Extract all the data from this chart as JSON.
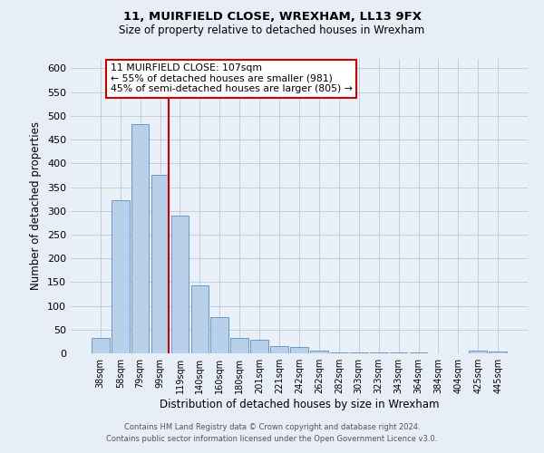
{
  "title1": "11, MUIRFIELD CLOSE, WREXHAM, LL13 9FX",
  "title2": "Size of property relative to detached houses in Wrexham",
  "xlabel": "Distribution of detached houses by size in Wrexham",
  "ylabel": "Number of detached properties",
  "bar_labels": [
    "38sqm",
    "58sqm",
    "79sqm",
    "99sqm",
    "119sqm",
    "140sqm",
    "160sqm",
    "180sqm",
    "201sqm",
    "221sqm",
    "242sqm",
    "262sqm",
    "282sqm",
    "303sqm",
    "323sqm",
    "343sqm",
    "364sqm",
    "384sqm",
    "404sqm",
    "425sqm",
    "445sqm"
  ],
  "bar_heights": [
    32,
    322,
    482,
    375,
    290,
    144,
    76,
    32,
    28,
    16,
    14,
    5,
    2,
    2,
    1,
    1,
    1,
    0,
    0,
    5,
    4
  ],
  "bar_color": "#b8d0ea",
  "bar_edgecolor": "#6699cc",
  "vline_color": "#cc0000",
  "annotation_title": "11 MUIRFIELD CLOSE: 107sqm",
  "annotation_line1": "← 55% of detached houses are smaller (981)",
  "annotation_line2": "45% of semi-detached houses are larger (805) →",
  "annotation_box_edgecolor": "#cc0000",
  "ylim": [
    0,
    620
  ],
  "yticks": [
    0,
    50,
    100,
    150,
    200,
    250,
    300,
    350,
    400,
    450,
    500,
    550,
    600
  ],
  "footnote1": "Contains HM Land Registry data © Crown copyright and database right 2024.",
  "footnote2": "Contains public sector information licensed under the Open Government Licence v3.0.",
  "bg_color": "#e8eef5",
  "plot_bg_color": "#eaf0f7"
}
